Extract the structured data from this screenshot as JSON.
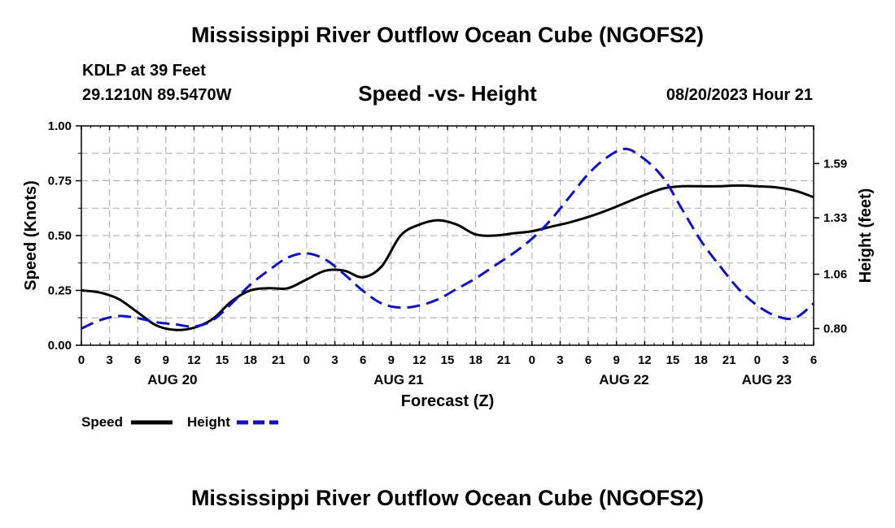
{
  "header": {
    "title": "Mississippi River Outflow Ocean Cube (NGOFS2)",
    "station": "KDLP at 39 Feet",
    "coords": "29.1210N  89.5470W",
    "subtitle": "Speed -vs- Height",
    "datetime": "08/20/2023 Hour 21"
  },
  "footer": {
    "title": "Mississippi River Outflow Ocean Cube (NGOFS2)"
  },
  "chart_data": {
    "type": "line",
    "xlabel": "Forecast (Z)",
    "ylabel_left": "Speed (Knots)",
    "ylabel_right": "Height (feet)",
    "x_unit": "hours from Aug 20 00Z",
    "xlim": [
      0,
      78
    ],
    "ylim_left": [
      0,
      1.0
    ],
    "ylim_right": [
      0.72,
      1.77
    ],
    "grid": true,
    "x_tick_labels": [
      "0",
      "3",
      "6",
      "9",
      "12",
      "15",
      "18",
      "21",
      "0",
      "3",
      "6",
      "9",
      "12",
      "15",
      "18",
      "21",
      "0",
      "3",
      "6",
      "9",
      "12",
      "15",
      "18",
      "21",
      "0",
      "3",
      "6"
    ],
    "day_labels": [
      {
        "text": "AUG 20",
        "hour": 9.7
      },
      {
        "text": "AUG 21",
        "hour": 33.8
      },
      {
        "text": "AUG 22",
        "hour": 57.8
      },
      {
        "text": "AUG 23",
        "hour": 73.0
      }
    ],
    "y_left_ticks": [
      "0.00",
      "0.25",
      "0.50",
      "0.75",
      "1.00"
    ],
    "y_right_ticks": [
      "0.80",
      "1.06",
      "1.33",
      "1.59"
    ],
    "y_right_tick_values": [
      0.8,
      1.06,
      1.33,
      1.59
    ],
    "legend": [
      {
        "label": "Speed",
        "color": "#000000",
        "style": "solid"
      },
      {
        "label": "Height",
        "color": "#1010c8",
        "style": "dashed"
      }
    ],
    "series": [
      {
        "name": "Speed",
        "axis": "left",
        "color": "#000000",
        "x": [
          0,
          2,
          4,
          6,
          8,
          10,
          12,
          14,
          16,
          18,
          20,
          22,
          24,
          26,
          28,
          30,
          32,
          34,
          36,
          38,
          40,
          42,
          44,
          46,
          48,
          50,
          52,
          54,
          56,
          58,
          60,
          62,
          64,
          66,
          68,
          70,
          72,
          74,
          76,
          78
        ],
        "values": [
          0.25,
          0.24,
          0.21,
          0.15,
          0.09,
          0.07,
          0.08,
          0.12,
          0.2,
          0.25,
          0.26,
          0.26,
          0.3,
          0.34,
          0.34,
          0.31,
          0.36,
          0.5,
          0.55,
          0.57,
          0.55,
          0.505,
          0.5,
          0.51,
          0.52,
          0.54,
          0.56,
          0.585,
          0.615,
          0.65,
          0.685,
          0.715,
          0.725,
          0.725,
          0.725,
          0.728,
          0.725,
          0.72,
          0.705,
          0.675
        ]
      },
      {
        "name": "Height",
        "axis": "right",
        "color": "#1010c8",
        "x": [
          0,
          2,
          4,
          6,
          8,
          10,
          12,
          14,
          16,
          18,
          20,
          22,
          24,
          26,
          28,
          30,
          32,
          34,
          36,
          38,
          40,
          42,
          44,
          46,
          48,
          50,
          52,
          54,
          56,
          58,
          60,
          62,
          64,
          66,
          68,
          70,
          72,
          74,
          76,
          78
        ],
        "values": [
          0.8,
          0.84,
          0.86,
          0.85,
          0.83,
          0.82,
          0.81,
          0.84,
          0.92,
          1.01,
          1.08,
          1.14,
          1.16,
          1.13,
          1.06,
          0.98,
          0.92,
          0.9,
          0.91,
          0.94,
          0.99,
          1.04,
          1.1,
          1.16,
          1.23,
          1.32,
          1.43,
          1.54,
          1.62,
          1.66,
          1.61,
          1.52,
          1.37,
          1.22,
          1.1,
          0.99,
          0.91,
          0.86,
          0.85,
          0.92
        ]
      }
    ]
  }
}
